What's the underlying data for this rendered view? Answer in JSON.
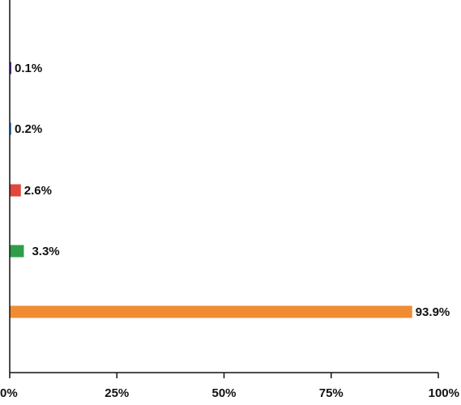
{
  "chart_data": {
    "type": "bar",
    "orientation": "horizontal",
    "categories": [
      "",
      "",
      "",
      "",
      ""
    ],
    "values": [
      0.1,
      0.2,
      2.6,
      3.3,
      93.9
    ],
    "data_labels": [
      "0.1%",
      "0.2%",
      "2.6%",
      "3.3%",
      "93.9%"
    ],
    "colors": [
      "#5b2d8e",
      "#4a90d9",
      "#e2463c",
      "#2e9e48",
      "#f08c32"
    ],
    "xlim": [
      0,
      100
    ],
    "x_ticks": [
      0,
      25,
      50,
      75,
      100
    ],
    "x_tick_labels": [
      "0%",
      "25%",
      "50%",
      "75%",
      "100%"
    ],
    "title": "",
    "xlabel": "",
    "ylabel": "",
    "grid": false,
    "legend": "none"
  }
}
